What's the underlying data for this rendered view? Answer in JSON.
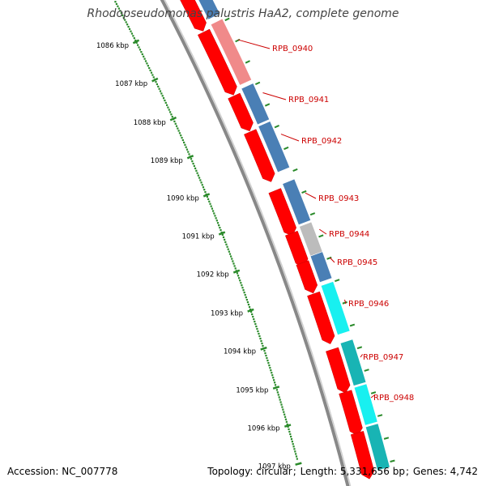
{
  "title": "Rhodopseudomonas palustris HaA2, complete genome",
  "accession_label": "Accession:",
  "accession": "NC_007778",
  "topology_label": "Topology:",
  "topology": "circular",
  "length_label": "Length:",
  "length": "5,331,656 bp",
  "genes_label": "Genes:",
  "genes": "4,742",
  "ruler": [
    {
      "label": "1086 kbp"
    },
    {
      "label": "1087 kbp"
    },
    {
      "label": "1088 kbp"
    },
    {
      "label": "1089 kbp"
    },
    {
      "label": "1090 kbp"
    },
    {
      "label": "1091 kbp"
    },
    {
      "label": "1092 kbp"
    },
    {
      "label": "1093 kbp"
    },
    {
      "label": "1094 kbp"
    },
    {
      "label": "1095 kbp"
    },
    {
      "label": "1096 kbp"
    },
    {
      "label": "1097 kbp"
    }
  ],
  "gene_labels": [
    {
      "name": "RPB_0940"
    },
    {
      "name": "RPB_0941"
    },
    {
      "name": "RPB_0942"
    },
    {
      "name": "RPB_0943"
    },
    {
      "name": "RPB_0944"
    },
    {
      "name": "RPB_0945"
    },
    {
      "name": "RPB_0946"
    },
    {
      "name": "RPB_0947"
    },
    {
      "name": "RPB_0948"
    }
  ],
  "colors": {
    "cds": "#ff0000",
    "cog_light_red": "#f08a8a",
    "cog_blue": "#4a7fb5",
    "cog_gray": "#bcbcbc",
    "cog_cyan": "#18f0f0",
    "cog_teal": "#18b4b4",
    "backbone": "#888888",
    "ruler": "#2a8a2a",
    "label": "#cc0000"
  }
}
